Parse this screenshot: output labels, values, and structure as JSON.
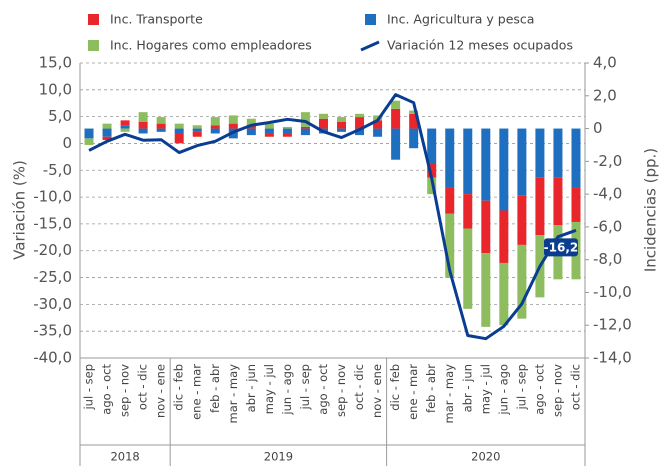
{
  "chart_data": {
    "type": "bar_line",
    "y_label": "Variación (%)",
    "y2_label": "Incidencias (pp.)",
    "categories": [
      "jul - sep",
      "ago - oct",
      "sep - nov",
      "oct - dic",
      "nov - ene",
      "dic - feb",
      "ene - mar",
      "feb - abr",
      "mar - may",
      "abr - jun",
      "may - jul",
      "jun - ago",
      "jul - sep",
      "ago - oct",
      "sep - nov",
      "oct - dic",
      "nov - ene",
      "dic - feb",
      "ene - mar",
      "feb - abr",
      "mar - may",
      "abr - jun",
      "may - jul",
      "jun - ago",
      "jul - sep",
      "ago - oct",
      "sep - nov",
      "oct - dic"
    ],
    "category_groups": [
      {
        "label": "2018",
        "size": 5
      },
      {
        "label": "2019",
        "size": 12
      },
      {
        "label": "2020",
        "size": 11
      }
    ],
    "series": [
      {
        "name": "Inc. Agricultura y pesca",
        "color": "#1f6fc1",
        "axis": "y2",
        "kind": "bar",
        "values": [
          -0.6,
          -0.5,
          0.2,
          -0.3,
          -0.2,
          -0.3,
          -0.2,
          -0.3,
          -0.6,
          -0.4,
          -0.3,
          -0.3,
          -0.4,
          -0.3,
          -0.2,
          -0.4,
          -0.5,
          -1.9,
          -1.2,
          -2.1,
          -3.6,
          -4.0,
          -4.4,
          -5.0,
          -4.1,
          -3.0,
          -3.0,
          -3.6
        ]
      },
      {
        "name": "Inc. Transporte",
        "color": "#e8262b",
        "axis": "y2",
        "kind": "bar",
        "values": [
          0,
          -0.2,
          0.3,
          0.4,
          0.3,
          -0.6,
          -0.3,
          0.2,
          0.3,
          0.2,
          -0.2,
          -0.2,
          0.1,
          0.6,
          0.4,
          0.7,
          0.5,
          1.2,
          0.9,
          -0.9,
          -1.6,
          -2.1,
          -3.2,
          -3.2,
          -3.0,
          -3.5,
          -2.9,
          -2.1
        ]
      },
      {
        "name": "Inc. Hogares como empleadores",
        "color": "#8dbd5e",
        "axis": "y2",
        "kind": "bar",
        "values": [
          -0.4,
          0.3,
          -0.2,
          0.6,
          0.4,
          0.3,
          0.2,
          0.5,
          0.5,
          0.4,
          0.3,
          0.1,
          0.9,
          0.3,
          0.3,
          0.2,
          0.3,
          0.5,
          0.2,
          -1.0,
          -3.9,
          -4.9,
          -4.5,
          -3.8,
          -4.5,
          -3.8,
          -3.3,
          -3.5
        ]
      },
      {
        "name": "Variación 12 meses ocupados",
        "color": "#0a3d91",
        "axis": "y",
        "kind": "line",
        "values": [
          -1.3,
          0.4,
          1.7,
          0.6,
          0.7,
          -1.7,
          -0.4,
          0.4,
          2.1,
          3.4,
          3.9,
          4.5,
          4.1,
          2.2,
          1.1,
          2.6,
          4.3,
          9.1,
          7.6,
          -6.5,
          -23.7,
          -35.8,
          -36.4,
          -34.1,
          -29.9,
          -22.9,
          -17.4,
          -16.2
        ],
        "value_labels": [
          null,
          null,
          null,
          null,
          null,
          null,
          null,
          null,
          null,
          null,
          null,
          null,
          null,
          null,
          null,
          null,
          null,
          null,
          null,
          null,
          null,
          null,
          null,
          null,
          null,
          null,
          null,
          "-16,2"
        ]
      }
    ],
    "ylim": [
      -40,
      15
    ],
    "yticks": [
      {
        "value": 15,
        "label": "15,0"
      },
      {
        "value": 10,
        "label": "10,0"
      },
      {
        "value": 5,
        "label": "5,0"
      },
      0,
      {
        "value": -5,
        "label": "-5,0"
      },
      {
        "value": -10,
        "label": "-10,0"
      },
      {
        "value": -15,
        "label": "-15,0"
      },
      {
        "value": -20,
        "label": "-20,0"
      },
      {
        "value": -25,
        "label": "-25,0"
      },
      {
        "value": -30,
        "label": "-30,0"
      },
      {
        "value": -35,
        "label": "-35,0"
      },
      {
        "value": -40,
        "label": "-40,0"
      }
    ],
    "y2lim": [
      -14,
      4
    ],
    "y2ticks": [
      {
        "value": 4,
        "label": "4,0"
      },
      {
        "value": 2,
        "label": "2,0"
      },
      0,
      {
        "value": -2,
        "label": "-2,0"
      },
      {
        "value": -4,
        "label": "-4,0"
      },
      {
        "value": -6,
        "label": "-6,0"
      },
      {
        "value": -8,
        "label": "-8,0"
      },
      {
        "value": -10,
        "label": "-10,0"
      },
      {
        "value": -12,
        "label": "-12,0"
      },
      {
        "value": -14,
        "label": "-14,0"
      }
    ],
    "grid": true
  }
}
